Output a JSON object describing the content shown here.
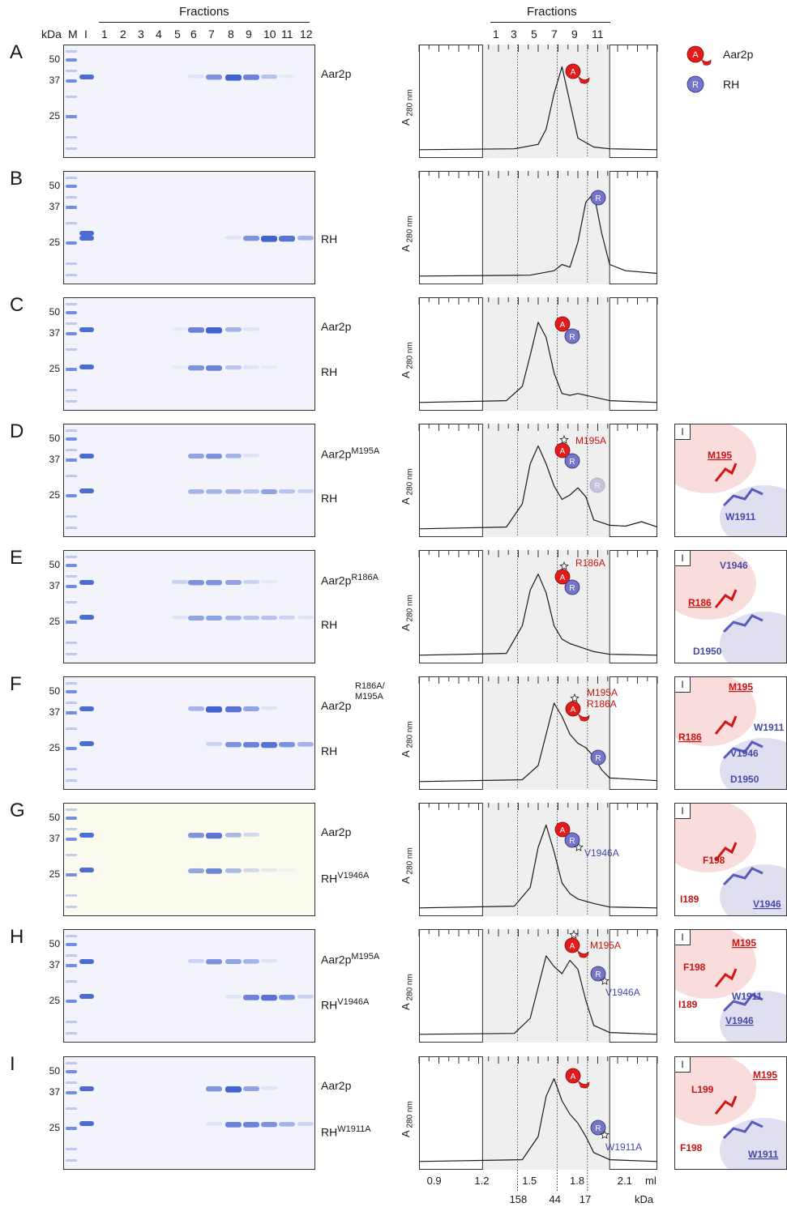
{
  "header": {
    "fractions_label_left": "Fractions",
    "fractions_label_right": "Fractions",
    "kda": "kDa",
    "marker": "M",
    "input": "I",
    "lanes": [
      "1",
      "2",
      "3",
      "4",
      "5",
      "6",
      "7",
      "8",
      "9",
      "10",
      "11",
      "12"
    ],
    "right_fraction_ticks": [
      "1",
      "3",
      "5",
      "7",
      "9",
      "11"
    ]
  },
  "legend": {
    "aar2p_symbol": "A",
    "aar2p_label": "Aar2p",
    "rh_symbol": "R",
    "rh_label": "RH"
  },
  "colors": {
    "aar2p": "#e31b1b",
    "rh": "#7474c9",
    "gel_band": "#3a5fd0"
  },
  "panels": [
    {
      "letter": "A",
      "mw": [
        "50",
        "37",
        "25"
      ],
      "labels": [
        {
          "text": "Aar2p",
          "sup": ""
        }
      ],
      "ylabel": "A",
      "ylabel_sub": "280 nm",
      "bands": {
        "aar2p": [
          0,
          0,
          0,
          0,
          0,
          0.1,
          0.6,
          0.9,
          0.7,
          0.3,
          0.05,
          0
        ],
        "rh": []
      }
    },
    {
      "letter": "B",
      "mw": [
        "50",
        "37",
        "25"
      ],
      "labels": [
        {
          "text": "RH",
          "sup": ""
        }
      ],
      "ylabel": "A",
      "ylabel_sub": "280 nm",
      "bands": {
        "aar2p": [],
        "rh": [
          0,
          0,
          0,
          0,
          0,
          0,
          0,
          0.1,
          0.6,
          0.9,
          0.8,
          0.4
        ]
      }
    },
    {
      "letter": "C",
      "mw": [
        "50",
        "37",
        "25"
      ],
      "labels": [
        {
          "text": "Aar2p",
          "sup": ""
        },
        {
          "text": "RH",
          "sup": ""
        }
      ],
      "ylabel": "A",
      "ylabel_sub": "280 nm",
      "bands": {
        "aar2p": [
          0,
          0,
          0,
          0,
          0.05,
          0.7,
          0.9,
          0.4,
          0.1,
          0,
          0,
          0
        ],
        "rh": [
          0,
          0,
          0,
          0,
          0.05,
          0.6,
          0.7,
          0.3,
          0.1,
          0.05,
          0,
          0
        ]
      }
    },
    {
      "letter": "D",
      "mw": [
        "50",
        "37",
        "25"
      ],
      "labels": [
        {
          "text": "Aar2p",
          "sup": "M195A"
        },
        {
          "text": "RH",
          "sup": ""
        }
      ],
      "ylabel": "A",
      "ylabel_sub": "280 nm",
      "bands": {
        "aar2p": [
          0,
          0,
          0,
          0,
          0,
          0.5,
          0.6,
          0.4,
          0.1,
          0,
          0,
          0
        ],
        "rh": [
          0,
          0,
          0,
          0,
          0,
          0.4,
          0.4,
          0.4,
          0.3,
          0.5,
          0.3,
          0.2
        ]
      },
      "annot": {
        "mut": "M195A",
        "ibox": "I",
        "res": [
          "M195",
          "W1911"
        ]
      }
    },
    {
      "letter": "E",
      "mw": [
        "50",
        "37",
        "25"
      ],
      "labels": [
        {
          "text": "Aar2p",
          "sup": "R186A"
        },
        {
          "text": "RH",
          "sup": ""
        }
      ],
      "ylabel": "A",
      "ylabel_sub": "280 nm",
      "bands": {
        "aar2p": [
          0,
          0,
          0,
          0,
          0.2,
          0.6,
          0.6,
          0.5,
          0.2,
          0.05,
          0,
          0
        ],
        "rh": [
          0,
          0,
          0,
          0,
          0.1,
          0.5,
          0.5,
          0.4,
          0.3,
          0.3,
          0.2,
          0.1
        ]
      },
      "annot": {
        "mut": "R186A",
        "ibox": "I",
        "res": [
          "V1946",
          "R186",
          "D1950"
        ]
      }
    },
    {
      "letter": "F",
      "mw": [
        "50",
        "37",
        "25"
      ],
      "labels": [
        {
          "text": "Aar2p",
          "sup": "R186A/ M195A"
        },
        {
          "text": "RH",
          "sup": ""
        }
      ],
      "ylabel": "A",
      "ylabel_sub": "280 nm",
      "bands": {
        "aar2p": [
          0,
          0,
          0,
          0,
          0,
          0.4,
          0.9,
          0.8,
          0.5,
          0.1,
          0,
          0
        ],
        "rh": [
          0,
          0,
          0,
          0,
          0,
          0,
          0.2,
          0.6,
          0.7,
          0.8,
          0.6,
          0.4
        ]
      },
      "annot": {
        "mut1": "M195A",
        "mut2": "R186A",
        "ibox": "I",
        "res": [
          "M195",
          "W1911",
          "R186",
          "V1946",
          "D1950"
        ]
      }
    },
    {
      "letter": "G",
      "mw": [
        "50",
        "37",
        "25"
      ],
      "labels": [
        {
          "text": "Aar2p",
          "sup": ""
        },
        {
          "text": "RH",
          "sup": "V1946A"
        }
      ],
      "ylabel": "A",
      "ylabel_sub": "280 nm",
      "bands": {
        "aar2p": [
          0,
          0,
          0,
          0,
          0,
          0.6,
          0.8,
          0.4,
          0.2,
          0,
          0,
          0
        ],
        "rh": [
          0,
          0,
          0,
          0,
          0,
          0.5,
          0.7,
          0.4,
          0.2,
          0.1,
          0.05,
          0
        ]
      },
      "annot": {
        "mut": "V1946A",
        "ibox": "I",
        "res": [
          "F198",
          "I189",
          "V1946"
        ]
      }
    },
    {
      "letter": "H",
      "mw": [
        "50",
        "37",
        "25"
      ],
      "labels": [
        {
          "text": "Aar2p",
          "sup": "M195A"
        },
        {
          "text": "RH",
          "sup": "V1946A"
        }
      ],
      "ylabel": "A",
      "ylabel_sub": "280 nm",
      "bands": {
        "aar2p": [
          0,
          0,
          0,
          0,
          0,
          0.2,
          0.6,
          0.5,
          0.4,
          0.1,
          0,
          0
        ],
        "rh": [
          0,
          0,
          0,
          0,
          0,
          0,
          0,
          0.1,
          0.7,
          0.8,
          0.6,
          0.2
        ]
      },
      "annot": {
        "mut1": "M195A",
        "mut2": "V1946A",
        "ibox": "I",
        "res": [
          "M195",
          "F198",
          "W1911",
          "I189",
          "V1946"
        ]
      }
    },
    {
      "letter": "I",
      "mw": [
        "50",
        "37",
        "25"
      ],
      "labels": [
        {
          "text": "Aar2p",
          "sup": ""
        },
        {
          "text": "RH",
          "sup": "W1911A"
        }
      ],
      "ylabel": "A",
      "ylabel_sub": "280 nm",
      "bands": {
        "aar2p": [
          0,
          0,
          0,
          0,
          0,
          0,
          0.6,
          0.9,
          0.5,
          0.1,
          0,
          0
        ],
        "rh": [
          0,
          0,
          0,
          0,
          0,
          0,
          0.1,
          0.7,
          0.7,
          0.6,
          0.4,
          0.2
        ]
      },
      "annot": {
        "mut": "W1911A",
        "ibox": "I",
        "res": [
          "M195",
          "L199",
          "F198",
          "W1911"
        ]
      }
    }
  ],
  "chart_data": {
    "type": "line",
    "xlabel": "ml",
    "x_ticks": [
      "0.9",
      "1.2",
      "1.5",
      "1.8",
      "2.1"
    ],
    "calibration_kda": [
      "158",
      "44",
      "17"
    ],
    "calibration_label": "kDa",
    "xlim": [
      0.8,
      2.3
    ],
    "calibration_x": [
      1.42,
      1.67,
      1.86
    ],
    "shaded_range": [
      1.2,
      2.0
    ],
    "series": [
      {
        "panel": "A",
        "x": [
          0.8,
          1.4,
          1.55,
          1.6,
          1.65,
          1.7,
          1.75,
          1.8,
          1.9,
          2.0,
          2.3
        ],
        "y": [
          0.02,
          0.03,
          0.08,
          0.25,
          0.65,
          0.95,
          0.55,
          0.15,
          0.05,
          0.03,
          0.02
        ]
      },
      {
        "panel": "B",
        "x": [
          0.8,
          1.5,
          1.65,
          1.7,
          1.75,
          1.8,
          1.85,
          1.9,
          1.95,
          2.0,
          2.1,
          2.3
        ],
        "y": [
          0.02,
          0.03,
          0.08,
          0.15,
          0.12,
          0.4,
          0.85,
          0.95,
          0.5,
          0.15,
          0.08,
          0.05
        ]
      },
      {
        "panel": "C",
        "x": [
          0.8,
          1.35,
          1.45,
          1.5,
          1.55,
          1.6,
          1.65,
          1.7,
          1.75,
          1.8,
          1.9,
          2.0,
          2.3
        ],
        "y": [
          0.02,
          0.04,
          0.2,
          0.55,
          0.92,
          0.75,
          0.35,
          0.12,
          0.1,
          0.12,
          0.08,
          0.04,
          0.02
        ]
      },
      {
        "panel": "D",
        "x": [
          0.8,
          1.35,
          1.45,
          1.5,
          1.55,
          1.6,
          1.65,
          1.7,
          1.75,
          1.8,
          1.85,
          1.9,
          2.0,
          2.1,
          2.2,
          2.3
        ],
        "y": [
          0.02,
          0.04,
          0.3,
          0.75,
          0.95,
          0.75,
          0.5,
          0.35,
          0.4,
          0.48,
          0.38,
          0.12,
          0.06,
          0.05,
          0.1,
          0.04
        ]
      },
      {
        "panel": "E",
        "x": [
          0.8,
          1.35,
          1.45,
          1.5,
          1.55,
          1.6,
          1.65,
          1.7,
          1.75,
          1.8,
          1.9,
          2.0,
          2.3
        ],
        "y": [
          0.02,
          0.04,
          0.35,
          0.75,
          0.93,
          0.72,
          0.35,
          0.2,
          0.15,
          0.12,
          0.06,
          0.03,
          0.02
        ]
      },
      {
        "panel": "F",
        "x": [
          0.8,
          1.45,
          1.55,
          1.6,
          1.65,
          1.7,
          1.75,
          1.8,
          1.85,
          1.9,
          1.95,
          2.0,
          2.3
        ],
        "y": [
          0.02,
          0.04,
          0.2,
          0.55,
          0.9,
          0.75,
          0.55,
          0.45,
          0.4,
          0.3,
          0.15,
          0.06,
          0.03
        ]
      },
      {
        "panel": "G",
        "x": [
          0.8,
          1.4,
          1.5,
          1.55,
          1.6,
          1.65,
          1.7,
          1.75,
          1.8,
          1.9,
          2.0,
          2.3
        ],
        "y": [
          0.02,
          0.04,
          0.25,
          0.7,
          0.95,
          0.65,
          0.3,
          0.18,
          0.12,
          0.07,
          0.03,
          0.02
        ]
      },
      {
        "panel": "H",
        "x": [
          0.8,
          1.4,
          1.5,
          1.55,
          1.6,
          1.65,
          1.7,
          1.75,
          1.8,
          1.85,
          1.9,
          2.0,
          2.3
        ],
        "y": [
          0.02,
          0.03,
          0.2,
          0.55,
          0.9,
          0.78,
          0.7,
          0.85,
          0.75,
          0.4,
          0.12,
          0.04,
          0.02
        ]
      },
      {
        "panel": "I",
        "x": [
          0.8,
          1.45,
          1.55,
          1.6,
          1.65,
          1.7,
          1.75,
          1.8,
          1.85,
          1.9,
          2.0,
          2.3
        ],
        "y": [
          0.02,
          0.04,
          0.3,
          0.75,
          0.95,
          0.7,
          0.55,
          0.45,
          0.3,
          0.12,
          0.04,
          0.02
        ]
      }
    ]
  }
}
